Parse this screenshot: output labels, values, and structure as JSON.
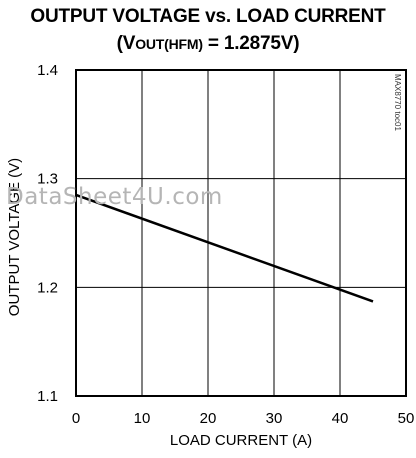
{
  "chart_data": {
    "type": "line",
    "title": "OUTPUT VOLTAGE vs. LOAD CURRENT",
    "subtitle": {
      "prefix": "(V",
      "subscript": "OUT(HFM)",
      "suffix": " = 1.2875V)"
    },
    "xlabel": "LOAD CURRENT (A)",
    "ylabel": "OUTPUT VOLTAGE (V)",
    "xlim": [
      0,
      50
    ],
    "ylim": [
      1.1,
      1.4
    ],
    "xticks": [
      0,
      10,
      20,
      30,
      40,
      50
    ],
    "yticks": [
      "1.1",
      "1.2",
      "1.3",
      "1.4"
    ],
    "grid": true,
    "series": [
      {
        "x": [
          0,
          45
        ],
        "y": [
          1.285,
          1.187
        ],
        "color": "#000000"
      }
    ]
  },
  "part_number": "MAX8770 toc01",
  "watermark": "DataSheet4U.com"
}
